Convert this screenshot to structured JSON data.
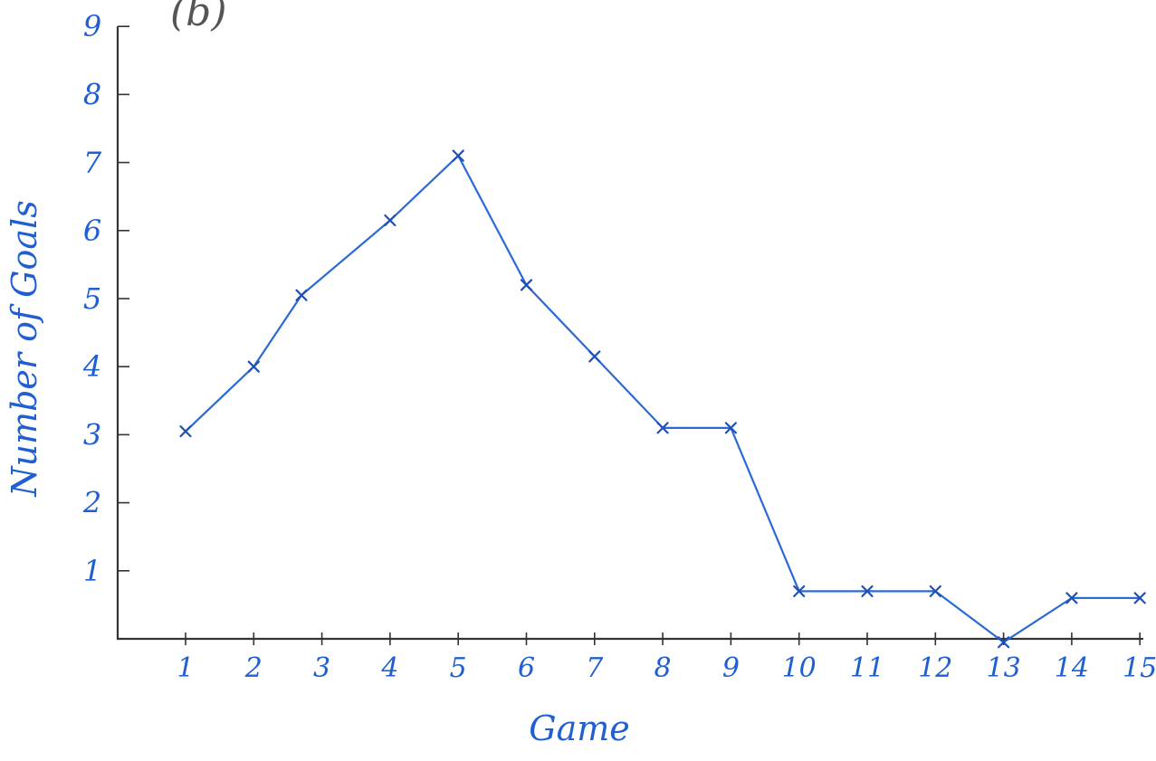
{
  "corner_label": "(b)",
  "colors": {
    "ink": "#1f5fd1",
    "line": "#2a6ad4",
    "axis": "#333333",
    "corner": "#555555"
  },
  "chart_data": {
    "type": "line",
    "title": "",
    "xlabel": "Game",
    "ylabel": "Number of Goals",
    "x": [
      1,
      2,
      2.7,
      4,
      5,
      6,
      7,
      8,
      9,
      10,
      11,
      12,
      13,
      14,
      15
    ],
    "series": [
      {
        "values": [
          3.05,
          4.0,
          5.05,
          6.15,
          7.1,
          5.2,
          4.15,
          3.1,
          3.1,
          0.7,
          0.7,
          0.7,
          -0.05,
          0.6,
          0.6
        ]
      }
    ],
    "x_ticks": [
      1,
      2,
      3,
      4,
      5,
      6,
      7,
      8,
      9,
      10,
      11,
      12,
      13,
      14,
      15
    ],
    "x_tick_labels": [
      "1",
      "2",
      "3",
      "4",
      "5",
      "6",
      "7",
      "8",
      "9",
      "10",
      "11",
      "12",
      "13",
      "14",
      "15"
    ],
    "y_ticks": [
      1,
      2,
      3,
      4,
      5,
      6,
      7,
      8,
      9
    ],
    "y_tick_labels": [
      "1",
      "2",
      "3",
      "4",
      "5",
      "6",
      "7",
      "8",
      "9"
    ],
    "xlim": [
      0,
      15
    ],
    "ylim": [
      0,
      9
    ],
    "marker": "x",
    "grid": false,
    "legend": "none"
  }
}
